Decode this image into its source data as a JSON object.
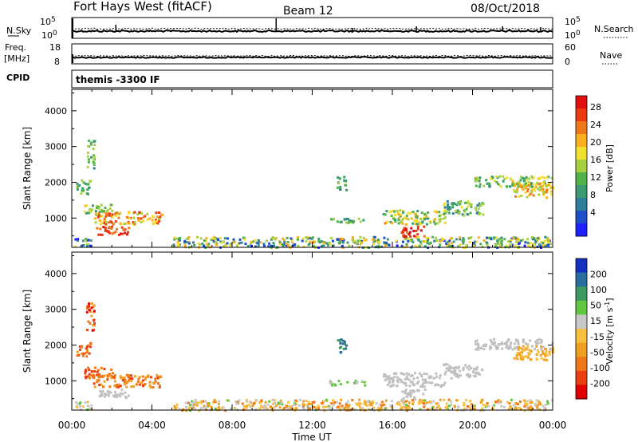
{
  "header": {
    "title": "Fort Hays West (fitACF)",
    "beam": "Beam 12",
    "date": "08/Oct/2018"
  },
  "noise_panel": {
    "left_label": "N.Sky",
    "right_label": "N.Search",
    "left_ticks": [
      "10^5",
      "10^0"
    ],
    "right_ticks": [
      "10^5",
      "10^0"
    ]
  },
  "freq_panel": {
    "left_label_1": "Freq.",
    "left_label_2": "[MHz]",
    "right_label": "Nave",
    "left_ticks": [
      "18",
      "8"
    ],
    "right_ticks": [
      "60",
      "0"
    ]
  },
  "cpid": {
    "label": "CPID",
    "value": "themis -3300 IF"
  },
  "chart_data": [
    {
      "type": "heatmap",
      "title": "Power",
      "xlabel": "",
      "ylabel": "Slant Range [km]",
      "x_ticks": [
        "00:00",
        "04:00",
        "08:00",
        "12:00",
        "16:00",
        "20:00",
        "00:00"
      ],
      "xlim_hours": [
        0,
        24
      ],
      "y_ticks": [
        1000,
        2000,
        3000,
        4000
      ],
      "ylim": [
        180,
        4600
      ],
      "colorbar": {
        "label": "Power [dB]",
        "ticks": [
          "4",
          "8",
          "12",
          "16",
          "20",
          "24",
          "28"
        ],
        "range": [
          0,
          30
        ],
        "colors": [
          "#1f22ff",
          "#1f4fc8",
          "#2e7f9a",
          "#3a9a70",
          "#52b24a",
          "#a8d040",
          "#f0e030",
          "#f8b020",
          "#f07818",
          "#ea3a12",
          "#e01010"
        ]
      },
      "regions": [
        {
          "t": [
            0.1,
            0.95
          ],
          "r": [
            200,
            450
          ],
          "v": [
            2,
            18
          ]
        },
        {
          "t": [
            5.0,
            24.0
          ],
          "r": [
            200,
            500
          ],
          "v": [
            2,
            22
          ]
        },
        {
          "t": [
            0.2,
            0.9
          ],
          "r": [
            1700,
            2100
          ],
          "v": [
            8,
            16
          ]
        },
        {
          "t": [
            0.7,
            1.1
          ],
          "r": [
            2400,
            3200
          ],
          "v": [
            8,
            16
          ]
        },
        {
          "t": [
            0.6,
            2.0
          ],
          "r": [
            1100,
            1400
          ],
          "v": [
            8,
            20
          ]
        },
        {
          "t": [
            1.0,
            4.5
          ],
          "r": [
            850,
            1200
          ],
          "v": [
            14,
            28
          ]
        },
        {
          "t": [
            1.2,
            2.8
          ],
          "r": [
            550,
            800
          ],
          "v": [
            22,
            30
          ]
        },
        {
          "t": [
            12.8,
            14.6
          ],
          "r": [
            900,
            1050
          ],
          "v": [
            8,
            16
          ]
        },
        {
          "t": [
            13.2,
            13.7
          ],
          "r": [
            1800,
            2200
          ],
          "v": [
            6,
            14
          ]
        },
        {
          "t": [
            15.5,
            18.6
          ],
          "r": [
            850,
            1250
          ],
          "v": [
            8,
            22
          ]
        },
        {
          "t": [
            16.4,
            17.6
          ],
          "r": [
            500,
            800
          ],
          "v": [
            24,
            30
          ]
        },
        {
          "t": [
            18.5,
            20.5
          ],
          "r": [
            1100,
            1500
          ],
          "v": [
            6,
            18
          ]
        },
        {
          "t": [
            20.0,
            24.0
          ],
          "r": [
            1900,
            2200
          ],
          "v": [
            8,
            20
          ]
        },
        {
          "t": [
            22.0,
            24.0
          ],
          "r": [
            1600,
            2000
          ],
          "v": [
            14,
            24
          ]
        }
      ]
    },
    {
      "type": "heatmap",
      "title": "Velocity",
      "xlabel": "Time UT",
      "ylabel": "Slant Range [km]",
      "x_ticks": [
        "00:00",
        "04:00",
        "08:00",
        "12:00",
        "16:00",
        "20:00",
        "00:00"
      ],
      "xlim_hours": [
        0,
        24
      ],
      "y_ticks": [
        1000,
        2000,
        3000,
        4000
      ],
      "ylim": [
        180,
        4600
      ],
      "colorbar": {
        "label": "Velocity [m s^-1]",
        "ticks": [
          "200",
          "100",
          "50",
          "15",
          "-15",
          "-50",
          "-100",
          "-200"
        ],
        "range": [
          -250,
          250
        ],
        "ground_scatter_color": "#c0c0c0",
        "colors": [
          "#1530c0",
          "#2a6ea0",
          "#3a9a60",
          "#60c840",
          "#c8c8c8",
          "#f8c040",
          "#f0a020",
          "#f07818",
          "#e84010",
          "#e00000"
        ]
      },
      "regions": [
        {
          "t": [
            0.1,
            0.95
          ],
          "r": [
            200,
            450
          ],
          "v": [
            -30,
            80
          ]
        },
        {
          "t": [
            5.0,
            24.0
          ],
          "r": [
            200,
            500
          ],
          "v": [
            -120,
            60
          ]
        },
        {
          "t": [
            0.2,
            0.9
          ],
          "r": [
            1700,
            2100
          ],
          "v": [
            -200,
            -80
          ]
        },
        {
          "t": [
            0.7,
            1.1
          ],
          "r": [
            2400,
            3200
          ],
          "v": [
            -220,
            -60
          ]
        },
        {
          "t": [
            0.6,
            2.0
          ],
          "r": [
            1100,
            1400
          ],
          "v": [
            -200,
            -100
          ]
        },
        {
          "t": [
            1.0,
            4.5
          ],
          "r": [
            850,
            1200
          ],
          "v": [
            -180,
            -60
          ]
        },
        {
          "t": [
            1.2,
            2.8
          ],
          "r": [
            550,
            800
          ],
          "gs": true
        },
        {
          "t": [
            12.8,
            14.6
          ],
          "r": [
            900,
            1050
          ],
          "v": [
            30,
            90
          ]
        },
        {
          "t": [
            13.2,
            13.7
          ],
          "r": [
            1800,
            2200
          ],
          "v": [
            120,
            220
          ]
        },
        {
          "t": [
            15.5,
            18.6
          ],
          "r": [
            850,
            1250
          ],
          "gs": true
        },
        {
          "t": [
            16.4,
            17.6
          ],
          "r": [
            500,
            800
          ],
          "gs": true
        },
        {
          "t": [
            18.5,
            20.5
          ],
          "r": [
            1100,
            1500
          ],
          "gs": true
        },
        {
          "t": [
            20.0,
            24.0
          ],
          "r": [
            1900,
            2200
          ],
          "gs": true
        },
        {
          "t": [
            22.0,
            24.0
          ],
          "r": [
            1600,
            2000
          ],
          "v": [
            -80,
            -20
          ]
        }
      ]
    }
  ]
}
